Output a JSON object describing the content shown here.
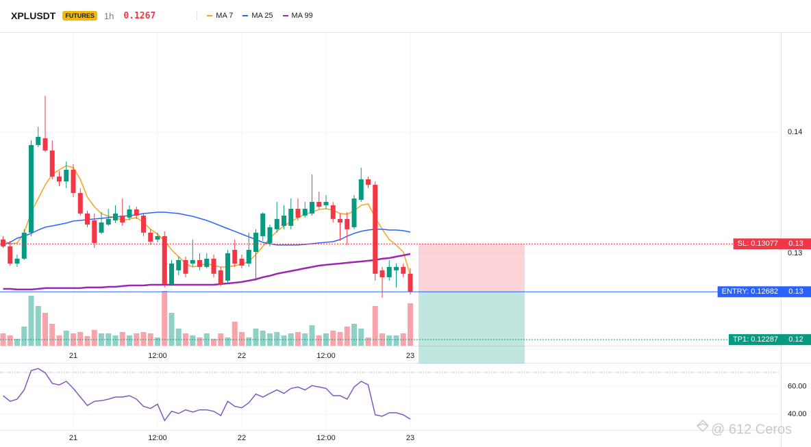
{
  "header": {
    "symbol": "XPLUSDT",
    "badge": "FUTURES",
    "interval": "1h",
    "price": "0.1267"
  },
  "chart_data": {
    "type": "candlestick",
    "x": [
      -10,
      -9,
      -8,
      -7,
      -6,
      -5,
      -4,
      -3,
      -2,
      -1,
      0,
      1,
      2,
      3,
      4,
      5,
      6,
      7,
      8,
      9,
      10,
      11,
      12,
      13,
      14,
      15,
      16,
      17,
      18,
      19,
      20,
      21,
      22,
      23,
      24,
      25,
      26,
      27,
      28,
      29,
      30,
      31,
      32,
      33,
      34,
      35,
      36,
      37,
      38,
      39,
      40,
      41,
      42,
      43,
      44,
      45,
      46,
      47,
      48
    ],
    "open": [
      0.13113,
      0.13057,
      0.12915,
      0.12955,
      0.1317,
      0.13893,
      0.13949,
      0.13848,
      0.13633,
      0.13593,
      0.13689,
      0.13497,
      0.13328,
      0.13271,
      0.1317,
      0.13237,
      0.13271,
      0.13311,
      0.13294,
      0.13362,
      0.13311,
      0.1317,
      0.13113,
      0.13141,
      0.12746,
      0.12859,
      0.12944,
      0.12915,
      0.12944,
      0.12887,
      0.12955,
      0.12859,
      0.12774,
      0.13028,
      0.12955,
      0.12915,
      0.13011,
      0.13141,
      0.13085,
      0.13198,
      0.13226,
      0.13226,
      0.13367,
      0.13311,
      0.13328,
      0.13424,
      0.13396,
      0.13396,
      0.13283,
      0.13283,
      0.13215,
      0.13441,
      0.1361,
      0.13565,
      0.12859,
      0.12802,
      0.12859,
      0.12887,
      0.12831
    ],
    "high": [
      0.13141,
      0.13102,
      0.12989,
      0.13198,
      0.13932,
      0.14045,
      0.143,
      0.13932,
      0.13678,
      0.13757,
      0.13735,
      0.13537,
      0.1335,
      0.13328,
      0.13339,
      0.13367,
      0.13396,
      0.13452,
      0.13396,
      0.13384,
      0.13328,
      0.13198,
      0.1317,
      0.13181,
      0.12944,
      0.12972,
      0.12972,
      0.13113,
      0.13,
      0.13,
      0.12989,
      0.12887,
      0.13028,
      0.13113,
      0.12989,
      0.1317,
      0.13198,
      0.13339,
      0.13237,
      0.13424,
      0.13396,
      0.13452,
      0.13452,
      0.13424,
      0.1365,
      0.13509,
      0.1348,
      0.13424,
      0.13328,
      0.13339,
      0.1348,
      0.13706,
      0.13633,
      0.13593,
      0.12887,
      0.12944,
      0.12915,
      0.12915,
      0.12876
    ],
    "low": [
      0.13045,
      0.12898,
      0.12887,
      0.12944,
      0.13141,
      0.13876,
      0.13836,
      0.1361,
      0.13554,
      0.13537,
      0.13463,
      0.13311,
      0.13215,
      0.13045,
      0.13158,
      0.13226,
      0.13249,
      0.13226,
      0.13271,
      0.13283,
      0.13141,
      0.13068,
      0.1309,
      0.12718,
      0.12729,
      0.12819,
      0.12802,
      0.12887,
      0.12859,
      0.12876,
      0.12802,
      0.12729,
      0.12757,
      0.12887,
      0.12876,
      0.12887,
      0.12774,
      0.13102,
      0.13057,
      0.1317,
      0.13198,
      0.13198,
      0.13271,
      0.13294,
      0.13311,
      0.13367,
      0.13367,
      0.13254,
      0.13102,
      0.13068,
      0.13198,
      0.13424,
      0.13537,
      0.12774,
      0.12633,
      0.12774,
      0.12718,
      0.12802,
      0.12661
    ],
    "close": [
      0.13057,
      0.12915,
      0.12955,
      0.1317,
      0.13893,
      0.13961,
      0.13848,
      0.13633,
      0.13593,
      0.13689,
      0.13497,
      0.13328,
      0.13237,
      0.13085,
      0.13254,
      0.13283,
      0.13328,
      0.13254,
      0.13362,
      0.13311,
      0.1317,
      0.13096,
      0.13141,
      0.12746,
      0.12915,
      0.12944,
      0.12831,
      0.12944,
      0.12887,
      0.12955,
      0.12831,
      0.12746,
      0.13,
      0.12915,
      0.12898,
      0.13028,
      0.1317,
      0.13328,
      0.13215,
      0.13283,
      0.13311,
      0.13367,
      0.13294,
      0.13367,
      0.13424,
      0.13384,
      0.13424,
      0.13283,
      0.13254,
      0.13198,
      0.13452,
      0.1361,
      0.13565,
      0.12831,
      0.12802,
      0.12887,
      0.12887,
      0.12831,
      0.12684
    ],
    "up_color": "#089981",
    "down_color": "#f23645",
    "xlim": [
      -10.44,
      100.78
    ],
    "xticks": [
      {
        "value": 0,
        "label": "21"
      },
      {
        "value": 12,
        "label": "12:00"
      },
      {
        "value": 24,
        "label": "22"
      },
      {
        "value": 36,
        "label": "12:00"
      },
      {
        "value": 48,
        "label": "23"
      }
    ],
    "ylim": [
      0.12237,
      0.14819
    ],
    "yticks": [
      0.14,
      0.13
    ],
    "grid": true,
    "volume": {
      "ylim": [
        0,
        100
      ],
      "values": [
        18,
        15,
        10,
        28,
        73,
        58,
        48,
        32,
        15,
        22,
        18,
        20,
        14,
        23,
        18,
        18,
        15,
        20,
        15,
        18,
        20,
        18,
        12,
        80,
        48,
        25,
        18,
        15,
        12,
        18,
        10,
        18,
        12,
        35,
        20,
        12,
        25,
        22,
        18,
        20,
        15,
        18,
        20,
        18,
        30,
        15,
        18,
        22,
        20,
        28,
        32,
        25,
        12,
        58,
        18,
        15,
        15,
        18,
        62
      ]
    },
    "moving_averages": [
      {
        "name": "MA 7",
        "color": "#f7a21b",
        "values": [
          0.13102,
          0.13079,
          0.13085,
          0.1317,
          0.13339,
          0.13452,
          0.13565,
          0.1365,
          0.13689,
          0.13723,
          0.13706,
          0.1361,
          0.13463,
          0.13384,
          0.13328,
          0.13305,
          0.13294,
          0.13271,
          0.13283,
          0.13294,
          0.13254,
          0.13198,
          0.13158,
          0.13102,
          0.13028,
          0.12972,
          0.12915,
          0.12887,
          0.12898,
          0.12915,
          0.12898,
          0.12887,
          0.12887,
          0.12898,
          0.1291,
          0.12932,
          0.12989,
          0.13057,
          0.13124,
          0.13181,
          0.13226,
          0.1326,
          0.13294,
          0.13322,
          0.13339,
          0.13362,
          0.13367,
          0.13356,
          0.13328,
          0.13322,
          0.1335,
          0.13396,
          0.13407,
          0.13294,
          0.13198,
          0.13113,
          0.13068,
          0.13011,
          0.12819
        ]
      },
      {
        "name": "MA 25",
        "color": "#2962ff",
        "values": [
          0.13068,
          0.1309,
          0.13124,
          0.13141,
          0.13164,
          0.13192,
          0.13215,
          0.13226,
          0.13237,
          0.13249,
          0.13266,
          0.13271,
          0.13277,
          0.13283,
          0.13288,
          0.13294,
          0.133,
          0.13305,
          0.13311,
          0.13316,
          0.13328,
          0.13333,
          0.13339,
          0.13339,
          0.13333,
          0.13328,
          0.13316,
          0.13305,
          0.13288,
          0.13271,
          0.13249,
          0.13226,
          0.13203,
          0.13181,
          0.13158,
          0.13136,
          0.13113,
          0.1309,
          0.13079,
          0.13068,
          0.13068,
          0.13068,
          0.13068,
          0.13073,
          0.13079,
          0.13085,
          0.1309,
          0.13096,
          0.13113,
          0.13141,
          0.13164,
          0.13181,
          0.13192,
          0.13198,
          0.13198,
          0.13192,
          0.13192,
          0.13186,
          0.13175
        ]
      },
      {
        "name": "MA 99",
        "color": "#9c27b0",
        "values": [
          0.12706,
          0.12706,
          0.12701,
          0.12701,
          0.12701,
          0.12706,
          0.12712,
          0.12712,
          0.12712,
          0.12712,
          0.12712,
          0.12712,
          0.12718,
          0.12718,
          0.12718,
          0.12723,
          0.12723,
          0.12729,
          0.12734,
          0.12734,
          0.12734,
          0.1274,
          0.1274,
          0.1274,
          0.1274,
          0.1274,
          0.1274,
          0.1274,
          0.1274,
          0.1274,
          0.1274,
          0.12746,
          0.12751,
          0.12757,
          0.12763,
          0.12774,
          0.12785,
          0.12802,
          0.12814,
          0.12831,
          0.12842,
          0.12853,
          0.12864,
          0.12876,
          0.12887,
          0.12898,
          0.12904,
          0.1291,
          0.12915,
          0.12921,
          0.12927,
          0.12932,
          0.12938,
          0.12944,
          0.12955,
          0.1296,
          0.12972,
          0.12983,
          0.12994
        ]
      }
    ],
    "levels": [
      {
        "value": 0.13077,
        "label": "SL: 0.13077",
        "axis_label": "0.13",
        "color": "#f23645"
      },
      {
        "value": 0.12682,
        "label": "ENTRY: 0.12682",
        "axis_label": "0.13",
        "color": "#2962ff"
      },
      {
        "value": 0.12287,
        "label": "TP1: 0.12287",
        "axis_label": "0.12",
        "color": "#089981"
      }
    ],
    "rsi": {
      "color": "#7e57c2",
      "ylim": [
        28.7,
        76.4
      ],
      "yticks": [
        {
          "value": 60,
          "label": "60.00"
        },
        {
          "value": 40,
          "label": "40.00"
        }
      ],
      "level": 70,
      "values": [
        53.3,
        49.2,
        50.8,
        57.4,
        71.3,
        72.8,
        69.7,
        62.1,
        61.0,
        63.6,
        58.5,
        52.3,
        46.2,
        49.2,
        49.7,
        50.8,
        52.3,
        52.3,
        53.3,
        50.8,
        45.6,
        44.1,
        47.2,
        35.4,
        42.1,
        40.5,
        43.1,
        41.5,
        43.1,
        43.1,
        42.1,
        39.0,
        49.2,
        45.6,
        44.6,
        48.2,
        54.4,
        52.3,
        54.9,
        57.4,
        54.9,
        58.5,
        59.5,
        57.4,
        60.5,
        59.5,
        58.5,
        53.3,
        53.3,
        50.8,
        59.5,
        63.6,
        61.0,
        39.5,
        38.5,
        41.0,
        41.0,
        39.5,
        36.4
      ]
    }
  },
  "watermark": "@ 612 Ceros"
}
